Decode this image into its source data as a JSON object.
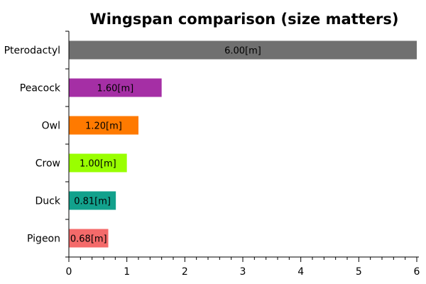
{
  "chart_data": {
    "type": "bar",
    "orientation": "horizontal",
    "title": "Wingspan comparison (size matters)",
    "xlabel": "",
    "ylabel": "",
    "xlim": [
      0,
      6
    ],
    "x_ticks": [
      "0",
      "1",
      "2",
      "3",
      "4",
      "5",
      "6"
    ],
    "grid": false,
    "categories": [
      "Pterodactyl",
      "Peacock",
      "Owl",
      "Crow",
      "Duck",
      "Pigeon"
    ],
    "values": [
      6.0,
      1.6,
      1.2,
      1.0,
      0.81,
      0.68
    ],
    "data_labels": [
      "6.00[m]",
      "1.60[m]",
      "1.20[m]",
      "1.00[m]",
      "0.81[m]",
      "0.68[m]"
    ],
    "colors": [
      "#707070",
      "#a52fa5",
      "#ff7a00",
      "#99ff00",
      "#12a18c",
      "#f46a6a"
    ]
  }
}
